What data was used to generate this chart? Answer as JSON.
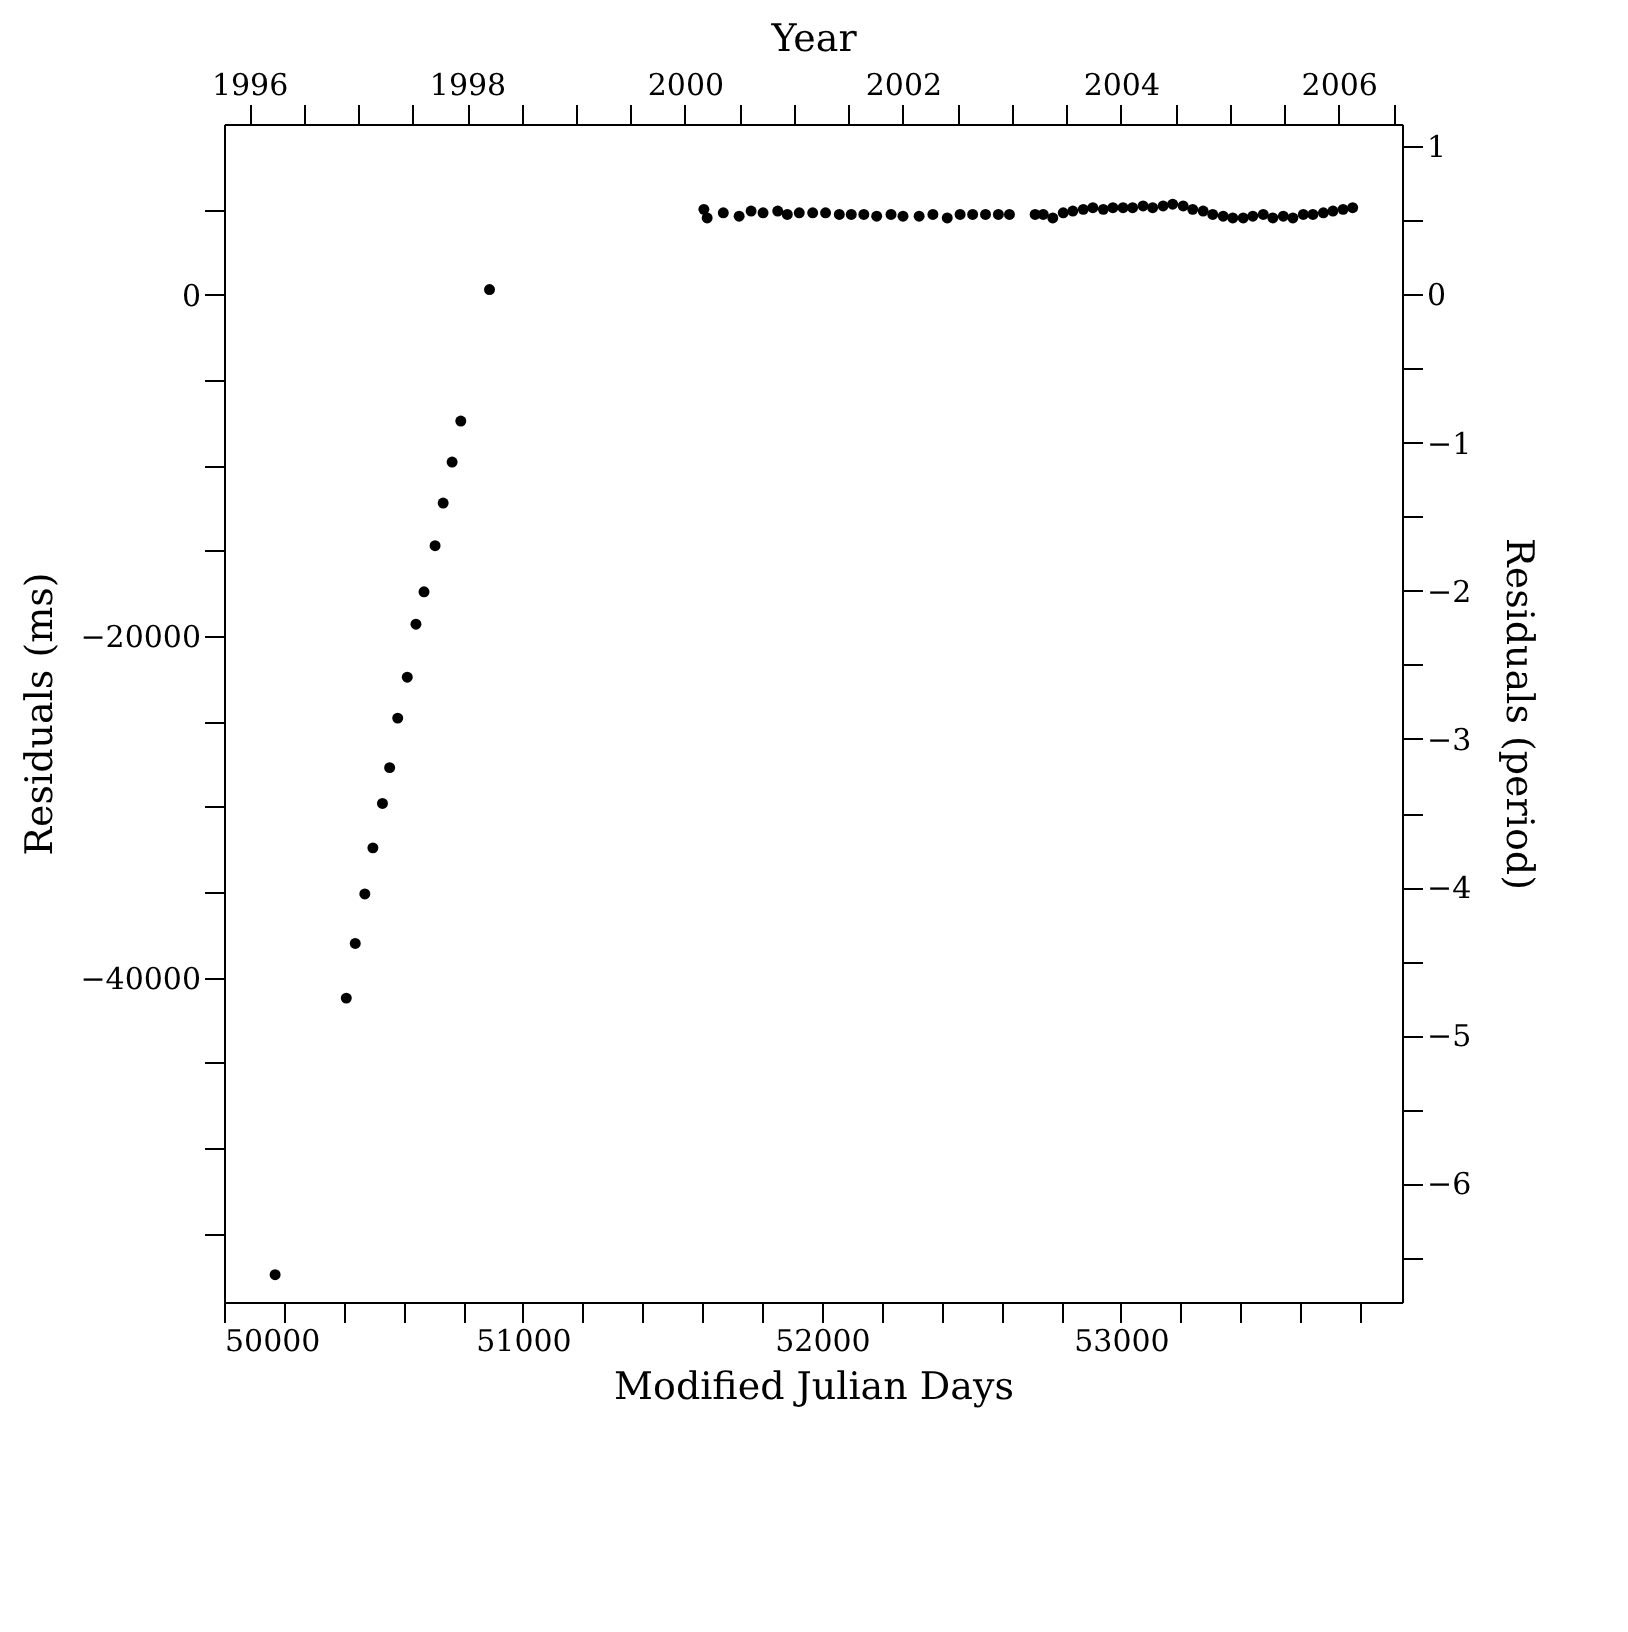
{
  "chart_data": {
    "type": "scatter",
    "xlabel": "Modified Julian Days",
    "ylabel": "Residuals (ms)",
    "x2label": "Year",
    "y2label": "Residuals (period)",
    "xlim": [
      50000,
      53940
    ],
    "ylim": [
      -59000,
      10000
    ],
    "x2lim": [
      1995.77,
      2006.58
    ],
    "y2lim": [
      -6.8,
      1.15
    ],
    "xticks": [
      50000,
      {
        "value": 50200,
        "label": null
      },
      {
        "value": 50400,
        "label": null
      },
      {
        "value": 50600,
        "label": null
      },
      {
        "value": 50800,
        "label": null
      },
      51000,
      {
        "value": 51200,
        "label": null
      },
      {
        "value": 51400,
        "label": null
      },
      {
        "value": 51600,
        "label": null
      },
      {
        "value": 51800,
        "label": null
      },
      52000,
      {
        "value": 52200,
        "label": null
      },
      {
        "value": 52400,
        "label": null
      },
      {
        "value": 52600,
        "label": null
      },
      {
        "value": 52800,
        "label": null
      },
      53000,
      {
        "value": 53200,
        "label": null
      },
      {
        "value": 53400,
        "label": null
      },
      {
        "value": 53600,
        "label": null
      },
      {
        "value": 53800,
        "label": null
      }
    ],
    "yticks": [
      {
        "value": 5000,
        "label": null
      },
      0,
      {
        "value": -5000,
        "label": null
      },
      {
        "value": -10000,
        "label": null
      },
      {
        "value": -15000,
        "label": null
      },
      -20000,
      {
        "value": -25000,
        "label": null
      },
      {
        "value": -30000,
        "label": null
      },
      {
        "value": -35000,
        "label": null
      },
      -40000,
      {
        "value": -45000,
        "label": null
      },
      {
        "value": -50000,
        "label": null
      },
      {
        "value": -55000,
        "label": null
      }
    ],
    "x2ticks": [
      1996,
      {
        "value": 1996.5,
        "label": null
      },
      {
        "value": 1997,
        "label": null
      },
      {
        "value": 1997.5,
        "label": null
      },
      1998,
      {
        "value": 1998.5,
        "label": null
      },
      {
        "value": 1999,
        "label": null
      },
      {
        "value": 1999.5,
        "label": null
      },
      2000,
      {
        "value": 2000.5,
        "label": null
      },
      {
        "value": 2001,
        "label": null
      },
      {
        "value": 2001.5,
        "label": null
      },
      2002,
      {
        "value": 2002.5,
        "label": null
      },
      {
        "value": 2003,
        "label": null
      },
      {
        "value": 2003.5,
        "label": null
      },
      2004,
      {
        "value": 2004.5,
        "label": null
      },
      {
        "value": 2005,
        "label": null
      },
      {
        "value": 2005.5,
        "label": null
      },
      2006,
      {
        "value": 2006.5,
        "label": null
      }
    ],
    "y2ticks": [
      1,
      {
        "value": 0.5,
        "label": null
      },
      0,
      {
        "value": -0.5,
        "label": null
      },
      -1,
      {
        "value": -1.5,
        "label": null
      },
      -2,
      {
        "value": -2.5,
        "label": null
      },
      -3,
      {
        "value": -3.5,
        "label": null
      },
      -4,
      {
        "value": -4.5,
        "label": null
      },
      -5,
      {
        "value": -5.5,
        "label": null
      },
      -6,
      {
        "value": -6.5,
        "label": null
      }
    ],
    "grid": false,
    "marker": "circle",
    "series": [
      {
        "color": "#000000",
        "x": [
          50171,
          50409,
          50439,
          50471,
          50498,
          50530,
          50554,
          50581,
          50613,
          50642,
          50669,
          50706,
          50733,
          50763,
          50792,
          50888,
          51605,
          51616,
          51670,
          51723,
          51763,
          51803,
          51852,
          51884,
          51924,
          51969,
          52012,
          52058,
          52098,
          52140,
          52183,
          52231,
          52271,
          52325,
          52371,
          52419,
          52462,
          52504,
          52547,
          52590,
          52627,
          52713,
          52740,
          52772,
          52807,
          52839,
          52874,
          52906,
          52941,
          52973,
          53007,
          53039,
          53074,
          53106,
          53141,
          53173,
          53208,
          53240,
          53275,
          53307,
          53342,
          53374,
          53409,
          53441,
          53476,
          53508,
          53543,
          53575,
          53610,
          53642,
          53677,
          53709,
          53743,
          53775
        ],
        "values": [
          -57400,
          -41200,
          -38000,
          -35100,
          -32400,
          -29800,
          -27700,
          -24800,
          -22400,
          -19300,
          -17400,
          -14700,
          -12200,
          -9800,
          -7400,
          300,
          5000,
          4500,
          4800,
          4600,
          4900,
          4800,
          4900,
          4700,
          4800,
          4800,
          4800,
          4700,
          4700,
          4700,
          4600,
          4700,
          4600,
          4600,
          4700,
          4500,
          4700,
          4700,
          4700,
          4700,
          4700,
          4700,
          4700,
          4500,
          4800,
          4900,
          5000,
          5100,
          5000,
          5100,
          5100,
          5100,
          5200,
          5100,
          5200,
          5300,
          5200,
          5000,
          4900,
          4700,
          4600,
          4500,
          4500,
          4600,
          4700,
          4500,
          4600,
          4500,
          4700,
          4700,
          4800,
          4900,
          5000,
          5100
        ]
      }
    ]
  }
}
